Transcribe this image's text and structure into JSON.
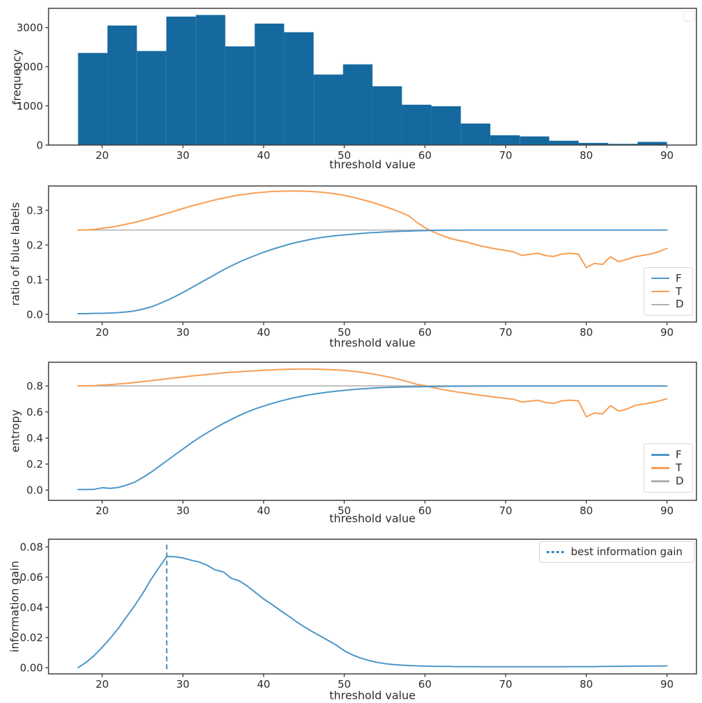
{
  "figure_title": "",
  "chart_data": [
    {
      "id": "frequency-histogram",
      "type": "bar",
      "xlabel": "threshold value",
      "ylabel": "frequency",
      "xlim": [
        13.35,
        93.65
      ],
      "ylim": [
        0,
        3490
      ],
      "xticks": [
        20,
        30,
        40,
        50,
        60,
        70,
        80,
        90
      ],
      "xticklabels": [
        "20",
        "30",
        "40",
        "50",
        "60",
        "70",
        "80",
        "90"
      ],
      "yticks": [
        0,
        1000,
        2000,
        3000
      ],
      "yticklabels": [
        "0",
        "1000",
        "2000",
        "3000"
      ],
      "bar_color": "#15699f",
      "bin_start": 17.0,
      "bin_width": 3.65,
      "values": [
        2350,
        3050,
        2400,
        3280,
        3320,
        2520,
        3100,
        2880,
        1800,
        2060,
        1500,
        1030,
        990,
        550,
        250,
        220,
        110,
        55,
        30,
        80
      ],
      "legend": {
        "position": "top-right",
        "empty_box": true,
        "entries": []
      }
    },
    {
      "id": "ratio-of-blue-labels",
      "type": "line",
      "xlabel": "threshold value",
      "ylabel": "ratio of blue labels",
      "xlim": [
        13.35,
        93.65
      ],
      "ylim": [
        -0.022,
        0.37
      ],
      "xticks": [
        20,
        30,
        40,
        50,
        60,
        70,
        80,
        90
      ],
      "xticklabels": [
        "20",
        "30",
        "40",
        "50",
        "60",
        "70",
        "80",
        "90"
      ],
      "yticks": [
        0.0,
        0.1,
        0.2,
        0.3
      ],
      "yticklabels": [
        "0.0",
        "0.1",
        "0.2",
        "0.3"
      ],
      "x_start": 17,
      "x_step": 1,
      "series": [
        {
          "name": "D",
          "color": "#b0b0b0",
          "width": 1.6,
          "x": [
            17,
            90
          ],
          "values": [
            0.243,
            0.243
          ]
        },
        {
          "name": "T",
          "color": "#f89e54",
          "values": [
            0.243,
            0.2435,
            0.245,
            0.248,
            0.251,
            0.255,
            0.26,
            0.265,
            0.271,
            0.277,
            0.284,
            0.291,
            0.298,
            0.305,
            0.312,
            0.318,
            0.324,
            0.33,
            0.335,
            0.34,
            0.344,
            0.347,
            0.35,
            0.352,
            0.354,
            0.3548,
            0.3553,
            0.3555,
            0.355,
            0.354,
            0.3525,
            0.35,
            0.347,
            0.343,
            0.338,
            0.332,
            0.326,
            0.319,
            0.311,
            0.303,
            0.294,
            0.284,
            0.265,
            0.25,
            0.238,
            0.228,
            0.22,
            0.214,
            0.209,
            0.203,
            0.197,
            0.192,
            0.188,
            0.184,
            0.18,
            0.17,
            0.173,
            0.176,
            0.169,
            0.167,
            0.174,
            0.176,
            0.174,
            0.135,
            0.147,
            0.144,
            0.166,
            0.152,
            0.158,
            0.166,
            0.17,
            0.174,
            0.181,
            0.19
          ]
        },
        {
          "name": "F",
          "color": "#4c96c8",
          "values": [
            0.002,
            0.002,
            0.003,
            0.003,
            0.004,
            0.005,
            0.007,
            0.01,
            0.015,
            0.021,
            0.03,
            0.04,
            0.051,
            0.063,
            0.076,
            0.089,
            0.102,
            0.115,
            0.128,
            0.14,
            0.151,
            0.161,
            0.17,
            0.179,
            0.187,
            0.194,
            0.201,
            0.207,
            0.212,
            0.217,
            0.221,
            0.224,
            0.227,
            0.229,
            0.231,
            0.233,
            0.235,
            0.236,
            0.2375,
            0.2385,
            0.2395,
            0.24,
            0.241,
            0.2415,
            0.242,
            0.2423,
            0.2425,
            0.2427,
            0.2428,
            0.2429,
            0.243,
            0.243,
            0.243,
            0.243,
            0.243,
            0.243,
            0.243,
            0.243,
            0.243,
            0.243,
            0.243,
            0.243,
            0.243,
            0.243,
            0.243,
            0.243,
            0.243,
            0.243,
            0.243,
            0.243,
            0.243,
            0.243,
            0.243,
            0.243
          ]
        }
      ],
      "legend": {
        "position": "right",
        "entries": [
          {
            "label": "F",
            "color": "#4c96c8",
            "dash": "solid"
          },
          {
            "label": "T",
            "color": "#f89e54",
            "dash": "solid"
          },
          {
            "label": "D",
            "color": "#b0b0b0",
            "dash": "solid"
          }
        ]
      }
    },
    {
      "id": "entropy",
      "type": "line",
      "xlabel": "threshold value",
      "ylabel": "entropy",
      "xlim": [
        13.35,
        93.65
      ],
      "ylim": [
        -0.079,
        0.982
      ],
      "xticks": [
        20,
        30,
        40,
        50,
        60,
        70,
        80,
        90
      ],
      "xticklabels": [
        "20",
        "30",
        "40",
        "50",
        "60",
        "70",
        "80",
        "90"
      ],
      "yticks": [
        0.0,
        0.2,
        0.4,
        0.6,
        0.8
      ],
      "yticklabels": [
        "0.0",
        "0.2",
        "0.4",
        "0.6",
        "0.8"
      ],
      "x_start": 17,
      "x_step": 1,
      "series": [
        {
          "name": "D",
          "color": "#b0b0b0",
          "width": 1.6,
          "x": [
            17,
            90
          ],
          "values": [
            0.8,
            0.8
          ]
        },
        {
          "name": "T",
          "color": "#f89e54",
          "values": [
            0.8,
            0.801,
            0.803,
            0.806,
            0.81,
            0.815,
            0.82,
            0.826,
            0.833,
            0.84,
            0.847,
            0.855,
            0.862,
            0.869,
            0.876,
            0.882,
            0.888,
            0.894,
            0.9,
            0.905,
            0.909,
            0.913,
            0.917,
            0.92,
            0.923,
            0.926,
            0.928,
            0.929,
            0.9295,
            0.929,
            0.928,
            0.926,
            0.923,
            0.919,
            0.913,
            0.906,
            0.897,
            0.887,
            0.875,
            0.862,
            0.847,
            0.831,
            0.812,
            0.803,
            0.788,
            0.775,
            0.764,
            0.754,
            0.745,
            0.736,
            0.727,
            0.719,
            0.711,
            0.704,
            0.698,
            0.676,
            0.683,
            0.69,
            0.672,
            0.667,
            0.686,
            0.691,
            0.686,
            0.563,
            0.592,
            0.585,
            0.648,
            0.607,
            0.622,
            0.65,
            0.66,
            0.67,
            0.684,
            0.702
          ]
        },
        {
          "name": "F",
          "color": "#4c96c8",
          "values": [
            0.004,
            0.004,
            0.006,
            0.018,
            0.013,
            0.02,
            0.038,
            0.06,
            0.095,
            0.135,
            0.18,
            0.225,
            0.27,
            0.315,
            0.36,
            0.402,
            0.44,
            0.477,
            0.511,
            0.543,
            0.573,
            0.6,
            0.624,
            0.645,
            0.664,
            0.682,
            0.698,
            0.712,
            0.724,
            0.735,
            0.744,
            0.753,
            0.76,
            0.766,
            0.772,
            0.777,
            0.781,
            0.785,
            0.788,
            0.79,
            0.792,
            0.793,
            0.794,
            0.795,
            0.796,
            0.797,
            0.7975,
            0.798,
            0.7983,
            0.7986,
            0.7988,
            0.799,
            0.799,
            0.799,
            0.7992,
            0.7992,
            0.7993,
            0.7993,
            0.7994,
            0.7994,
            0.7995,
            0.7995,
            0.7995,
            0.7995,
            0.7996,
            0.7996,
            0.7996,
            0.7997,
            0.7997,
            0.7997,
            0.7997,
            0.7998,
            0.7998,
            0.7998
          ]
        }
      ],
      "legend": {
        "position": "right",
        "entries": [
          {
            "label": "F",
            "color": "#4c96c8",
            "dash": "solid"
          },
          {
            "label": "T",
            "color": "#f89e54",
            "dash": "solid"
          },
          {
            "label": "D",
            "color": "#b0b0b0",
            "dash": "solid"
          }
        ]
      }
    },
    {
      "id": "information-gain",
      "type": "line",
      "xlabel": "threshold value",
      "ylabel": "information gain",
      "xlim": [
        13.35,
        93.65
      ],
      "ylim": [
        -0.0041,
        0.0851
      ],
      "xticks": [
        20,
        30,
        40,
        50,
        60,
        70,
        80,
        90
      ],
      "xticklabels": [
        "20",
        "30",
        "40",
        "50",
        "60",
        "70",
        "80",
        "90"
      ],
      "yticks": [
        0.0,
        0.02,
        0.04,
        0.06,
        0.08
      ],
      "yticklabels": [
        "0.00",
        "0.02",
        "0.04",
        "0.06",
        "0.08"
      ],
      "x_start": 17,
      "x_step": 1,
      "series": [
        {
          "name": "information gain",
          "color": "#4c96c8",
          "values": [
            0.0,
            0.0035,
            0.008,
            0.0135,
            0.0195,
            0.026,
            0.0335,
            0.041,
            0.049,
            0.058,
            0.066,
            0.0737,
            0.0735,
            0.0727,
            0.0712,
            0.07,
            0.0678,
            0.0648,
            0.0635,
            0.0592,
            0.0575,
            0.054,
            0.0498,
            0.0455,
            0.042,
            0.0382,
            0.0345,
            0.0307,
            0.0272,
            0.024,
            0.021,
            0.018,
            0.015,
            0.0112,
            0.0085,
            0.0064,
            0.0048,
            0.0036,
            0.0027,
            0.0021,
            0.0017,
            0.0014,
            0.0012,
            0.001,
            0.0009,
            0.0008,
            0.0008,
            0.0007,
            0.0007,
            0.0007,
            0.0006,
            0.0006,
            0.0006,
            0.0006,
            0.0006,
            0.0006,
            0.0006,
            0.0006,
            0.0006,
            0.0006,
            0.0006,
            0.0007,
            0.0007,
            0.0007,
            0.0007,
            0.0008,
            0.0008,
            0.0009,
            0.0009,
            0.001,
            0.001,
            0.0011,
            0.0011,
            0.0012
          ]
        }
      ],
      "vline": {
        "x": 28,
        "y0": -0.001,
        "y1": 0.0818,
        "color": "#3f8cc0",
        "style": "dashed",
        "label": "best information gain"
      },
      "best_threshold": 28,
      "best_information_gain": 0.0737,
      "legend": {
        "position": "top-right",
        "entries": [
          {
            "label": "best information gain",
            "color": "#3f8cc0",
            "dash": "dashed"
          }
        ]
      }
    }
  ]
}
